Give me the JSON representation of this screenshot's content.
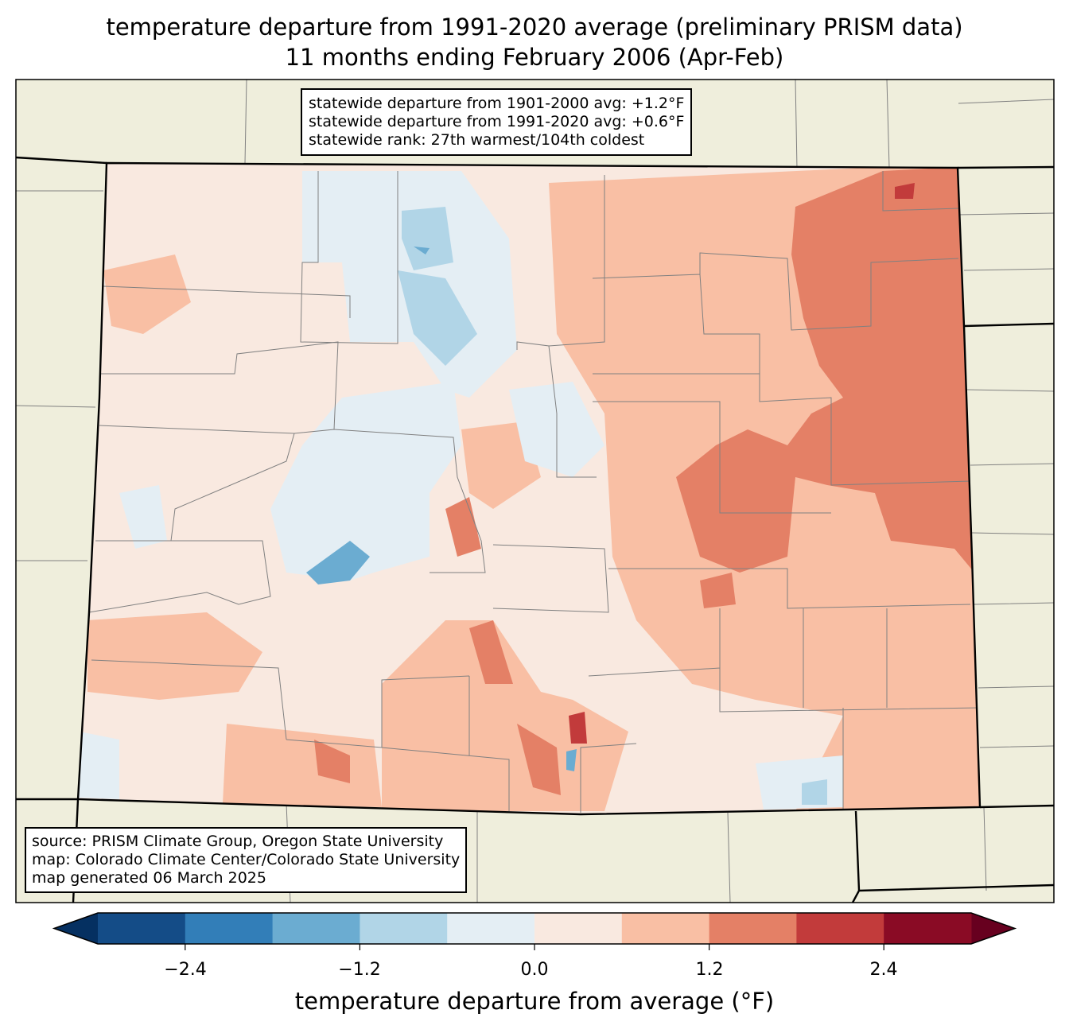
{
  "title": {
    "line1": "temperature departure from 1991-2020 average (preliminary PRISM data)",
    "line2": "11 months ending February 2006 (Apr-Feb)"
  },
  "stats_box": {
    "line1": "statewide departure from 1901-2000 avg: +1.2°F",
    "line2": "statewide departure from 1991-2020 avg: +0.6°F",
    "line3": "statewide rank: 27th warmest/104th coldest"
  },
  "source_box": {
    "line1": "source: PRISM Climate Group, Oregon State University",
    "line2": "map: Colorado Climate Center/Colorado State University",
    "line3": "map generated 06 March 2025"
  },
  "colorbar": {
    "label": "temperature departure from average (°F)",
    "ticks": [
      "−2.4",
      "−1.2",
      "0.0",
      "1.2",
      "2.4"
    ],
    "boundaries": [
      -3.0,
      -2.4,
      -1.8,
      -1.2,
      -0.6,
      0.0,
      0.6,
      1.2,
      1.8,
      2.4,
      3.0
    ],
    "colors": [
      "#144c87",
      "#327eb8",
      "#6bacd1",
      "#b1d5e7",
      "#e4eef4",
      "#f9e9e0",
      "#f9bfa4",
      "#e48066",
      "#c23b3b",
      "#8a0b25"
    ],
    "extend_low_color": "#053061",
    "extend_high_color": "#67001f"
  },
  "map_colors": {
    "land": "#efeedc",
    "state_border": "#000000",
    "county_border": "#808080"
  }
}
